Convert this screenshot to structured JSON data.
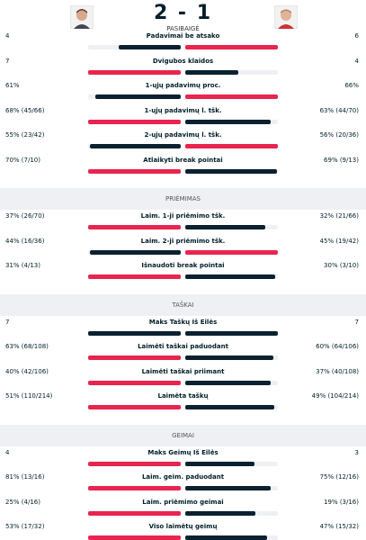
{
  "header": {
    "score": "2 - 1",
    "status": "PASIBAIGĖ"
  },
  "sections": [
    {
      "rows": [
        {
          "label": "Padavimai be atsako",
          "left": 4,
          "right": 6
        },
        {
          "label": "Dvigubos klaidos",
          "left": 7,
          "right": 4
        },
        {
          "label": "1-ųjų padavimų proc.",
          "left": {
            "value": 61,
            "label": "61%"
          },
          "right": {
            "value": 66,
            "label": "66%"
          }
        },
        {
          "label": "1-ųjų padavimų l. tšk.",
          "left": {
            "value": 68,
            "label": "68% (45/66)"
          },
          "right": {
            "value": 63,
            "label": "63% (44/70)"
          }
        },
        {
          "label": "2-ųjų padavimų l. tšk.",
          "left": {
            "value": 55,
            "label": "55% (23/42)"
          },
          "right": {
            "value": 56,
            "label": "56% (20/36)"
          }
        },
        {
          "label": "Atlaikyti break pointai",
          "left": {
            "value": 70,
            "label": "70% (7/10)"
          },
          "right": {
            "value": 69,
            "label": "69% (9/13)"
          }
        }
      ]
    },
    {
      "title": "PRIĖMIMAS",
      "rows": [
        {
          "label": "Laim. 1-ji priėmimo tšk.",
          "left": {
            "value": 37,
            "label": "37% (26/70)"
          },
          "right": {
            "value": 32,
            "label": "32% (21/66)"
          }
        },
        {
          "label": "Laim. 2-ji priėmimo tšk.",
          "left": {
            "value": 44,
            "label": "44% (16/36)"
          },
          "right": {
            "value": 45,
            "label": "45% (19/42)"
          }
        },
        {
          "label": "Išnaudoti break pointai",
          "left": {
            "value": 31,
            "label": "31% (4/13)"
          },
          "right": {
            "value": 30,
            "label": "30% (3/10)"
          }
        }
      ]
    },
    {
      "title": "TAŠKAI",
      "rows": [
        {
          "label": "Maks Taškų Iš Eilės",
          "left": 7,
          "right": 7
        },
        {
          "label": "Laimėti taškai paduodant",
          "left": {
            "value": 63,
            "label": "63% (68/108)"
          },
          "right": {
            "value": 60,
            "label": "60% (64/106)"
          }
        },
        {
          "label": "Laimėti taškai priimant",
          "left": {
            "value": 40,
            "label": "40% (42/106)"
          },
          "right": {
            "value": 37,
            "label": "37% (40/108)"
          }
        },
        {
          "label": "Laimėta taškų",
          "left": {
            "value": 51,
            "label": "51% (110/214)"
          },
          "right": {
            "value": 49,
            "label": "49% (104/214)"
          }
        }
      ]
    },
    {
      "title": "GEIMAI",
      "rows": [
        {
          "label": "Maks Geimų Iš Eilės",
          "left": 4,
          "right": 3
        },
        {
          "label": "Laim. geim. paduodant",
          "left": {
            "value": 81,
            "label": "81% (13/16)"
          },
          "right": {
            "value": 75,
            "label": "75% (12/16)"
          }
        },
        {
          "label": "Laim. priėmimo geimai",
          "left": {
            "value": 25,
            "label": "25% (4/16)"
          },
          "right": {
            "value": 19,
            "label": "19% (3/16)"
          }
        },
        {
          "label": "Viso laimėtų geimų",
          "left": {
            "value": 53,
            "label": "53% (17/32)"
          },
          "right": {
            "value": 47,
            "label": "47% (15/32)"
          }
        }
      ]
    }
  ]
}
